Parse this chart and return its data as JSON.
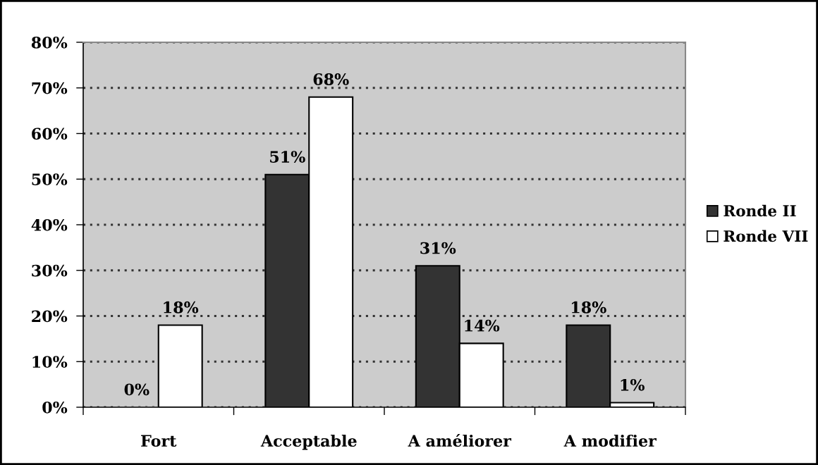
{
  "chart_data": {
    "type": "bar",
    "categories": [
      "Fort",
      "Acceptable",
      "A améliorer",
      "A modifier"
    ],
    "series": [
      {
        "name": "Ronde II",
        "color": "#333333",
        "values": [
          0,
          51,
          31,
          18
        ],
        "value_labels": [
          "0%",
          "51%",
          "31%",
          "18%"
        ]
      },
      {
        "name": "Ronde VII",
        "color": "#ffffff",
        "values": [
          18,
          68,
          14,
          1
        ],
        "value_labels": [
          "18%",
          "68%",
          "14%",
          "1%"
        ]
      }
    ],
    "ylim": [
      0,
      80
    ],
    "yticks": [
      {
        "value": 0,
        "label": "0%"
      },
      {
        "value": 10,
        "label": "10%"
      },
      {
        "value": 20,
        "label": "20%"
      },
      {
        "value": 30,
        "label": "30%"
      },
      {
        "value": 40,
        "label": "40%"
      },
      {
        "value": 50,
        "label": "50%"
      },
      {
        "value": 60,
        "label": "60%"
      },
      {
        "value": 70,
        "label": "70%"
      },
      {
        "value": 80,
        "label": "80%"
      }
    ],
    "grid": "y",
    "legend": "right"
  }
}
